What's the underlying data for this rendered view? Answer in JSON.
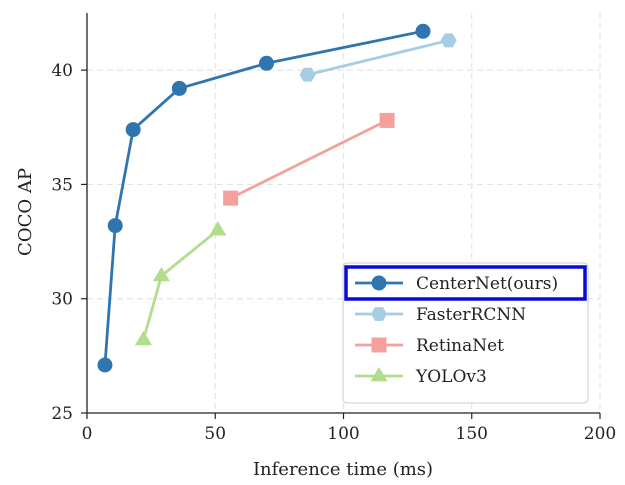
{
  "chart_data": {
    "type": "line",
    "title": "",
    "xlabel": "Inference time (ms)",
    "ylabel": "COCO AP",
    "xlim": [
      0,
      200
    ],
    "ylim": [
      25,
      42.5
    ],
    "xticks": [
      0,
      50,
      100,
      150,
      200
    ],
    "yticks": [
      25,
      30,
      35,
      40
    ],
    "grid": true,
    "legend_position": "bottom-right",
    "series": [
      {
        "name": "CenterNet(ours)",
        "color": "#2f76b1",
        "marker": "circle",
        "highlighted": true,
        "points": [
          [
            7,
            27.1
          ],
          [
            11,
            33.2
          ],
          [
            18,
            37.4
          ],
          [
            36,
            39.2
          ],
          [
            70,
            40.3
          ],
          [
            131,
            41.7
          ]
        ]
      },
      {
        "name": "FasterRCNN",
        "color": "#a6cde3",
        "marker": "hexagon",
        "highlighted": false,
        "points": [
          [
            86,
            39.8
          ],
          [
            141,
            41.3
          ]
        ]
      },
      {
        "name": "RetinaNet",
        "color": "#f4a09c",
        "marker": "square",
        "highlighted": false,
        "points": [
          [
            56,
            34.4
          ],
          [
            117,
            37.8
          ]
        ]
      },
      {
        "name": "YOLOv3",
        "color": "#b1dd8c",
        "marker": "triangle",
        "highlighted": false,
        "points": [
          [
            22,
            28.2
          ],
          [
            29,
            31.0
          ],
          [
            51,
            33.0
          ]
        ]
      }
    ]
  }
}
